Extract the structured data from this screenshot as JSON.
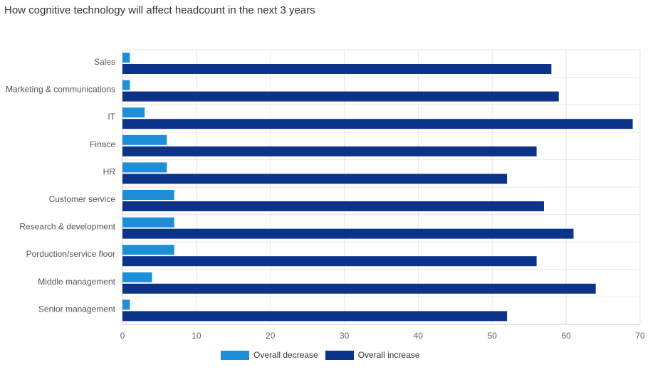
{
  "chart_data": {
    "type": "bar",
    "orientation": "horizontal",
    "title": "How cognitive technology will affect headcount in the next 3 years",
    "categories": [
      "Sales",
      "Marketing & communications",
      "IT",
      "Finace",
      "HR",
      "Customer service",
      "Research & development",
      "Porduction/service floor",
      "Middle management",
      "Senior management"
    ],
    "series": [
      {
        "name": "Overall decrease",
        "color": "#1d8fd8",
        "values": [
          1,
          1,
          3,
          6,
          6,
          7,
          7,
          7,
          4,
          1
        ]
      },
      {
        "name": "Overall increase",
        "color": "#0b3389",
        "values": [
          58,
          59,
          69,
          56,
          52,
          57,
          61,
          56,
          64,
          52
        ]
      }
    ],
    "xlim": [
      0,
      70
    ],
    "xticks": [
      "0",
      "10",
      "20",
      "30",
      "40",
      "50",
      "60",
      "70"
    ],
    "grid": true,
    "legend_position": "bottom"
  }
}
